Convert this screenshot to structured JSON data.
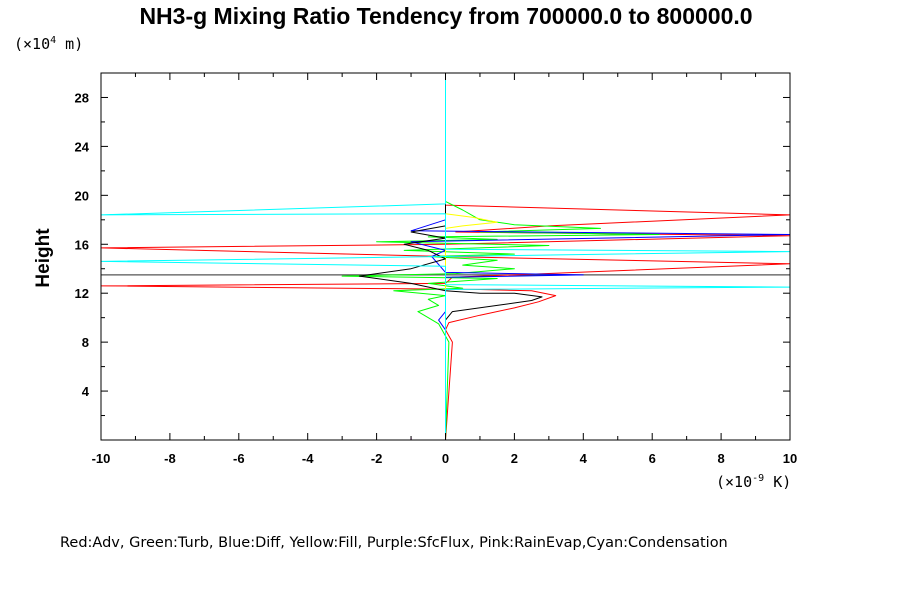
{
  "chart_data": {
    "type": "line",
    "title": "NH3-g Mixing Ratio Tendency from 700000.0 to 800000.0",
    "ylabel": "Height",
    "y_unit_prefix": "(×10",
    "y_unit_exp": "4",
    "y_unit_suffix": " m)",
    "x_unit_prefix": "(×10",
    "x_unit_exp": "-9",
    "x_unit_suffix": " K)",
    "xlim": [
      -10,
      10
    ],
    "ylim": [
      0,
      30
    ],
    "x_ticks": [
      -10,
      -8,
      -6,
      -4,
      -2,
      0,
      2,
      4,
      6,
      8,
      10
    ],
    "y_ticks": [
      4,
      8,
      12,
      16,
      20,
      24,
      28
    ],
    "grid": false,
    "legend_text": "Red:Adv, Green:Turb, Blue:Diff, Yellow:Fill, Purple:SfcFlux, Pink:RainEvap,Cyan:Condensation",
    "series": [
      {
        "color": "#ff0000",
        "points": [
          [
            0,
            0
          ],
          [
            0.2,
            8
          ],
          [
            0,
            9
          ],
          [
            0.1,
            9.6
          ],
          [
            1,
            10.2
          ],
          [
            2,
            10.8
          ],
          [
            2.7,
            11.3
          ],
          [
            3.2,
            11.8
          ],
          [
            2.5,
            12.2
          ],
          [
            1,
            12.3
          ],
          [
            -10,
            12.6
          ],
          [
            0,
            12.8
          ],
          [
            0.2,
            13.3
          ],
          [
            10,
            14.4
          ],
          [
            0,
            15
          ],
          [
            -10,
            15.7
          ],
          [
            0,
            16
          ],
          [
            10,
            16.7
          ],
          [
            0.3,
            17
          ],
          [
            3,
            17.5
          ],
          [
            10,
            18.4
          ],
          [
            0,
            19.2
          ],
          [
            0,
            30
          ]
        ]
      },
      {
        "color": "#00ff00",
        "points": [
          [
            0,
            0
          ],
          [
            0.1,
            8
          ],
          [
            -0.2,
            9.5
          ],
          [
            -0.5,
            10
          ],
          [
            -0.8,
            10.5
          ],
          [
            -0.2,
            11
          ],
          [
            -0.5,
            11.5
          ],
          [
            0,
            11.8
          ],
          [
            -1.5,
            12.2
          ],
          [
            0.5,
            12.4
          ],
          [
            -0.5,
            12.8
          ],
          [
            1.5,
            13.2
          ],
          [
            -3,
            13.4
          ],
          [
            0.3,
            13.6
          ],
          [
            2,
            14
          ],
          [
            0.5,
            14.3
          ],
          [
            1.5,
            14.7
          ],
          [
            -0.5,
            15
          ],
          [
            2,
            15.2
          ],
          [
            -1.2,
            15.5
          ],
          [
            3,
            15.9
          ],
          [
            -2,
            16.2
          ],
          [
            1.5,
            16.4
          ],
          [
            -0.5,
            16.6
          ],
          [
            6.2,
            16.8
          ],
          [
            1,
            17
          ],
          [
            4.5,
            17.3
          ],
          [
            2,
            17.6
          ],
          [
            1,
            18
          ],
          [
            0.5,
            18.8
          ],
          [
            0,
            19.5
          ],
          [
            0,
            30
          ]
        ]
      },
      {
        "color": "#0000ff",
        "points": [
          [
            0,
            0
          ],
          [
            0,
            9
          ],
          [
            -0.2,
            9.8
          ],
          [
            0,
            10.5
          ],
          [
            0,
            13.3
          ],
          [
            4,
            13.5
          ],
          [
            0,
            13.7
          ],
          [
            -0.4,
            15
          ],
          [
            0,
            15.5
          ],
          [
            -1,
            16.2
          ],
          [
            10,
            16.8
          ],
          [
            -1,
            17.1
          ],
          [
            0,
            18
          ],
          [
            0,
            30
          ]
        ]
      },
      {
        "color": "#ffff00",
        "points": [
          [
            0,
            0
          ],
          [
            0,
            18.5
          ],
          [
            0.8,
            18.2
          ],
          [
            1.5,
            17.8
          ],
          [
            0.5,
            17.5
          ],
          [
            0,
            17.3
          ],
          [
            0,
            30
          ]
        ]
      },
      {
        "color": "#000000",
        "points": [
          [
            0,
            0
          ],
          [
            0,
            9
          ],
          [
            0,
            9.8
          ],
          [
            0.2,
            10.5
          ],
          [
            1.5,
            11
          ],
          [
            2.5,
            11.4
          ],
          [
            2.8,
            11.7
          ],
          [
            2,
            12
          ],
          [
            1,
            12
          ],
          [
            0,
            12.2
          ],
          [
            -1,
            12.8
          ],
          [
            -2.5,
            13.4
          ],
          [
            -1,
            14
          ],
          [
            0,
            14.8
          ],
          [
            -0.5,
            15.5
          ],
          [
            -1.2,
            16
          ],
          [
            0,
            16.5
          ],
          [
            -1,
            17
          ],
          [
            0,
            17.5
          ],
          [
            0,
            18.5
          ],
          [
            0,
            30
          ]
        ]
      },
      {
        "color": "#00ffff",
        "points": [
          [
            0,
            0
          ],
          [
            0,
            12.3
          ],
          [
            10,
            12.5
          ],
          [
            0,
            12.7
          ],
          [
            0,
            14.2
          ],
          [
            -10,
            14.6
          ],
          [
            0,
            15
          ],
          [
            10,
            15.4
          ],
          [
            0,
            15.6
          ],
          [
            0,
            18.5
          ],
          [
            -10,
            18.4
          ],
          [
            0,
            19.3
          ],
          [
            0,
            30
          ]
        ]
      },
      {
        "color": "#ff00ff",
        "points": [
          [
            -1,
            0
          ],
          [
            -1,
            0.2
          ]
        ]
      }
    ],
    "reference_lines": [
      {
        "color": "#555555",
        "y": 13.5
      },
      {
        "color": "#00ffff",
        "x": 0
      }
    ]
  }
}
